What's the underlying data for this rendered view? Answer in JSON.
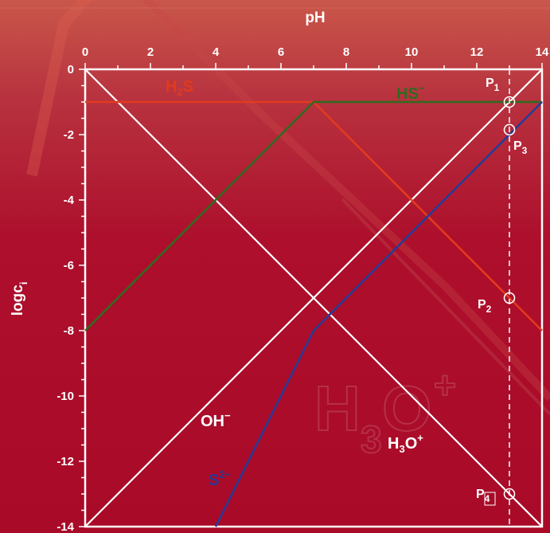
{
  "chart_data": {
    "type": "line",
    "xlabel": "pH",
    "ylabel": "logc",
    "ylabel_sub": "i",
    "xlim": [
      0,
      14
    ],
    "ylim": [
      -14,
      0
    ],
    "x_ticks": [
      "0",
      "2",
      "4",
      "6",
      "8",
      "10",
      "12",
      "14"
    ],
    "y_ticks": [
      "0",
      "-2",
      "-4",
      "-6",
      "-8",
      "-10",
      "-12",
      "-14"
    ],
    "grid": false,
    "series": [
      {
        "name": "H2S",
        "color": "#e23a1e",
        "x": [
          0,
          7,
          14
        ],
        "y": [
          -1,
          -1,
          -8
        ]
      },
      {
        "name": "HS⁻",
        "color": "#2f6b1f",
        "x": [
          0,
          7,
          14
        ],
        "y": [
          -8,
          -1,
          -1
        ]
      },
      {
        "name": "S²⁻",
        "color": "#2a3a94",
        "x": [
          4,
          7,
          14
        ],
        "y": [
          -14,
          -8,
          -1
        ]
      },
      {
        "name": "OH⁻",
        "color": "#ffffff",
        "x": [
          0,
          14
        ],
        "y": [
          -14,
          0
        ]
      },
      {
        "name": "H₃O⁺",
        "color": "#ffffff",
        "x": [
          0,
          14
        ],
        "y": [
          0,
          -14
        ]
      }
    ],
    "reference_line": {
      "x": 13,
      "style": "dashed"
    },
    "labels": {
      "h2s": {
        "main": "H",
        "sub": "2",
        "tail": "S"
      },
      "hs": {
        "main": "HS",
        "sup": "−"
      },
      "s2": {
        "main": "S",
        "sup": "2−"
      },
      "oh": {
        "main": "OH",
        "sup": "−"
      },
      "h3o": {
        "main": "H",
        "sub": "3",
        "tail": "O",
        "sup": "+"
      }
    },
    "watermark": {
      "main": "H",
      "sub": "3",
      "tail": "O",
      "sup": "+"
    },
    "points": [
      {
        "main": "P",
        "sub": "1",
        "x": 13,
        "y": -1
      },
      {
        "main": "P",
        "sub": "2",
        "x": 13,
        "y": -7
      },
      {
        "main": "P",
        "sub": "3",
        "x": 13,
        "y": -1.85
      },
      {
        "main": "P",
        "sub": "4",
        "x": 13,
        "y": -13
      }
    ]
  }
}
